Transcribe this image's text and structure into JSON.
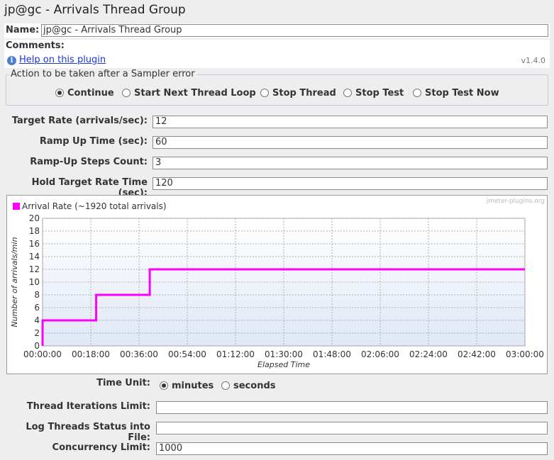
{
  "window": {
    "title": "jp@gc - Arrivals Thread Group"
  },
  "name_field": {
    "label": "Name:",
    "value": "jp@gc - Arrivals Thread Group"
  },
  "comments": {
    "label": "Comments:"
  },
  "help": {
    "link_text": "Help on this plugin",
    "version": "v1.4.0",
    "icon": "info-icon"
  },
  "sampler_error": {
    "legend": "Action to be taken after a Sampler error",
    "options": [
      {
        "label": "Continue",
        "selected": true
      },
      {
        "label": "Start Next Thread Loop",
        "selected": false
      },
      {
        "label": "Stop Thread",
        "selected": false
      },
      {
        "label": "Stop Test",
        "selected": false
      },
      {
        "label": "Stop Test Now",
        "selected": false
      }
    ]
  },
  "params": {
    "target_rate": {
      "label": "Target Rate (arrivals/sec):",
      "value": "12"
    },
    "ramp_up_time": {
      "label": "Ramp Up Time (sec):",
      "value": "60"
    },
    "ramp_up_steps": {
      "label": "Ramp-Up Steps Count:",
      "value": "3"
    },
    "hold_time": {
      "label": "Hold Target Rate Time (sec):",
      "value": "120"
    }
  },
  "chart_data": {
    "type": "line",
    "title": "",
    "legend": "Arrival Rate (~1920 total arrivals)",
    "watermark": "jmeter-plugins.org",
    "xlabel": "Elapsed Time",
    "ylabel": "Number of arrivals/min",
    "series_color": "#ff00ff",
    "xlim": [
      "00:00:00",
      "03:00:00"
    ],
    "ylim": [
      0,
      20
    ],
    "x_ticks": [
      "00:00:00",
      "00:18:00",
      "00:36:00",
      "00:54:00",
      "01:12:00",
      "01:30:00",
      "01:48:00",
      "02:06:00",
      "02:24:00",
      "02:42:00",
      "03:00:00"
    ],
    "y_ticks": [
      "0",
      "2",
      "4",
      "6",
      "8",
      "10",
      "12",
      "14",
      "16",
      "18",
      "20"
    ],
    "grid": true,
    "series": [
      {
        "name": "Arrival Rate (~1920 total arrivals)",
        "x": [
          "00:00:00",
          "00:00:00",
          "00:20:00",
          "00:20:00",
          "00:40:00",
          "00:40:00",
          "03:00:00"
        ],
        "values": [
          0,
          4,
          4,
          8,
          8,
          12,
          12
        ]
      }
    ]
  },
  "time_unit": {
    "label": "Time Unit:",
    "options": [
      {
        "label": "minutes",
        "selected": true
      },
      {
        "label": "seconds",
        "selected": false
      }
    ]
  },
  "bottom": {
    "iterations": {
      "label": "Thread Iterations Limit:",
      "value": ""
    },
    "log_file": {
      "label": "Log Threads Status into File:",
      "value": ""
    },
    "concurrency": {
      "label": "Concurrency Limit:",
      "value": "1000"
    }
  }
}
